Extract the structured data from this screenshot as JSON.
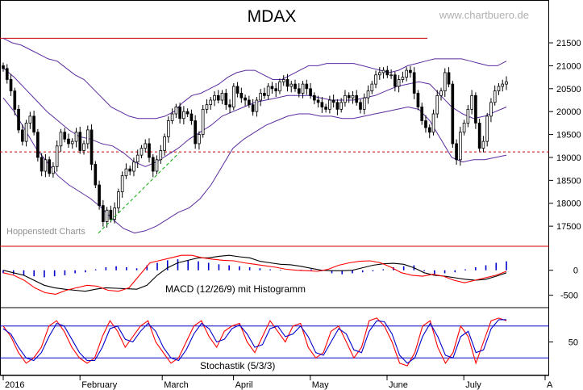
{
  "chart_data": [
    {
      "type": "candlestick",
      "title": "MDAX",
      "watermark": "www.chartbuero.de",
      "source_label": "Hoppenstedt Charts",
      "y_ticks": [
        "21500",
        "21000",
        "20500",
        "20000",
        "19500",
        "19000",
        "18500",
        "18000",
        "17500"
      ],
      "ylim": [
        17150,
        21800
      ],
      "x_labels": [
        "2016",
        "February",
        "March",
        "April",
        "May",
        "June",
        "July",
        "A"
      ],
      "horizontal_lines": [
        {
          "value": 21600,
          "style": "solid",
          "color": "#cc0000"
        },
        {
          "value": 19120,
          "style": "dashed",
          "color": "#cc0000"
        }
      ],
      "trendline": {
        "from": 17350,
        "to": 19100,
        "style": "dashed",
        "color": "#00aa00"
      },
      "closes": [
        20940,
        20700,
        20450,
        20050,
        19600,
        19350,
        19750,
        19900,
        19550,
        19000,
        18700,
        18950,
        18650,
        18800,
        19250,
        19550,
        19400,
        19300,
        19350,
        19550,
        19150,
        19300,
        19600,
        18850,
        18400,
        17950,
        17600,
        17850,
        17650,
        17900,
        18250,
        18600,
        18750,
        18700,
        18900,
        19050,
        19200,
        19300,
        19000,
        18700,
        18950,
        19150,
        19450,
        19800,
        19950,
        20100,
        19850,
        20000,
        19950,
        19800,
        19300,
        19500,
        20050,
        20150,
        20250,
        20350,
        20250,
        20400,
        20150,
        20100,
        20550,
        20400,
        20300,
        20250,
        20150,
        20000,
        20250,
        20400,
        20350,
        20550,
        20500,
        20450,
        20650,
        20700,
        20550,
        20600,
        20500,
        20400,
        20600,
        20500,
        20350,
        20250,
        20200,
        20100,
        20050,
        20250,
        20200,
        20050,
        20200,
        20350,
        20300,
        20350,
        20200,
        20050,
        20300,
        20450,
        20600,
        20800,
        20850,
        20900,
        20800,
        20800,
        20550,
        20700,
        20750,
        20900,
        20850,
        20400,
        20100,
        19800,
        19650,
        19550,
        19950,
        20350,
        20450,
        20850,
        20600,
        19300,
        18950,
        19550,
        19750,
        20050,
        20350,
        19750,
        19200,
        19350,
        19900,
        20200,
        20450,
        20550,
        20600,
        20650
      ],
      "series": [
        {
          "name": "Bollinger upper",
          "color": "#5a2ca0",
          "values": [
            21600,
            21500,
            21450,
            21350,
            21250,
            21150,
            21100,
            20950,
            20800,
            20700,
            20500,
            20300,
            20100,
            20000,
            19900,
            19850,
            19850,
            19850,
            19900,
            20000,
            20200,
            20350,
            20400,
            20500,
            20600,
            20750,
            20850,
            20900,
            20900,
            20800,
            20700,
            20700,
            20800,
            20900,
            21000,
            21000,
            21050,
            21050,
            21050,
            21050,
            21000,
            20950,
            20900,
            20850,
            20900,
            21000,
            21050,
            21100,
            21150,
            21150,
            21150,
            21150,
            21100,
            21050,
            21000,
            21000,
            21100
          ]
        },
        {
          "name": "Bollinger middle",
          "color": "#5a2ca0",
          "values": [
            20950,
            20750,
            20500,
            20250,
            20000,
            19800,
            19600,
            19450,
            19400,
            19300,
            19250,
            19100,
            18900,
            18800,
            18900,
            19050,
            19200,
            19400,
            19550,
            19700,
            19900,
            20000,
            20100,
            20200,
            20250,
            20300,
            20350,
            20350,
            20350,
            20300,
            20250,
            20250,
            20250,
            20300,
            20350,
            20450,
            20550,
            20600,
            20650,
            20600,
            20350,
            20100,
            19950,
            19850,
            19900,
            20000,
            20100
          ]
        },
        {
          "name": "Bollinger lower",
          "color": "#5a2ca0",
          "values": [
            20300,
            20000,
            19600,
            19200,
            18900,
            18600,
            18400,
            18250,
            18100,
            17900,
            17650,
            17450,
            17350,
            17400,
            17500,
            17650,
            17800,
            17900,
            18100,
            18400,
            18800,
            19200,
            19400,
            19550,
            19700,
            19800,
            19900,
            19950,
            19950,
            19900,
            19900,
            19850,
            19850,
            19900,
            19950,
            20000,
            20050,
            20100,
            20050,
            19800,
            19400,
            19000,
            18900,
            18950,
            18950,
            19000,
            19050
          ]
        }
      ]
    },
    {
      "type": "line",
      "title": "MACD (12/26/9) mit Histogramm",
      "y_ticks": [
        "0",
        "-500"
      ],
      "ylim": [
        -700,
        400
      ],
      "series": [
        {
          "name": "MACD",
          "color": "#000000",
          "values": [
            0,
            -50,
            -100,
            -200,
            -300,
            -350,
            -380,
            -400,
            -420,
            -380,
            -350,
            -360,
            -370,
            -380,
            -300,
            -100,
            50,
            150,
            200,
            250,
            250,
            280,
            300,
            270,
            250,
            180,
            150,
            120,
            110,
            80,
            40,
            0,
            -10,
            -10,
            0,
            50,
            100,
            130,
            140,
            120,
            50,
            -50,
            -100,
            -120,
            -150,
            -180,
            -200,
            -180,
            -120,
            -50
          ]
        },
        {
          "name": "Signal",
          "color": "#ff0000",
          "values": [
            -50,
            -100,
            -200,
            -350,
            -450,
            -480,
            -400,
            -350,
            -300,
            -320,
            -400,
            -420,
            -350,
            -100,
            150,
            200,
            250,
            300,
            300,
            250,
            220,
            200,
            190,
            150,
            120,
            90,
            60,
            20,
            0,
            -10,
            -20,
            20,
            100,
            150,
            180,
            190,
            150,
            60,
            -50,
            -100,
            -120,
            -80,
            -120,
            -200,
            -250,
            -200,
            -150,
            -100,
            -20
          ]
        }
      ],
      "histogram": [
        -60,
        -80,
        -100,
        -120,
        -140,
        -120,
        -100,
        -60,
        -40,
        20,
        60,
        80,
        60,
        40,
        100,
        150,
        200,
        220,
        200,
        180,
        150,
        120,
        100,
        80,
        60,
        40,
        20,
        10,
        0,
        10,
        20,
        -20,
        -60,
        -80,
        -60,
        -40,
        -20,
        20,
        60,
        80,
        100,
        -20,
        -80,
        -60,
        -40,
        20,
        60,
        100,
        150,
        180
      ]
    },
    {
      "type": "line",
      "title": "Stochastik (5/3/3)",
      "y_ticks": [
        "50"
      ],
      "ylim": [
        -10,
        110
      ],
      "bands": [
        80,
        20
      ],
      "series": [
        {
          "name": "%K",
          "color": "#ff0000",
          "values": [
            80,
            60,
            30,
            10,
            20,
            40,
            80,
            90,
            70,
            40,
            20,
            10,
            20,
            60,
            90,
            70,
            40,
            60,
            80,
            90,
            50,
            30,
            10,
            20,
            50,
            80,
            90,
            60,
            40,
            70,
            80,
            85,
            50,
            30,
            60,
            90,
            70,
            50,
            80,
            85,
            40,
            20,
            30,
            70,
            80,
            50,
            20,
            40,
            90,
            95,
            80,
            50,
            10,
            5,
            30,
            80,
            90,
            40,
            10,
            30,
            80,
            60,
            10,
            50,
            90,
            95,
            90
          ]
        },
        {
          "name": "%D",
          "color": "#0000cc",
          "values": [
            75,
            65,
            40,
            20,
            15,
            30,
            60,
            85,
            80,
            55,
            30,
            15,
            15,
            40,
            75,
            80,
            55,
            50,
            70,
            85,
            70,
            40,
            20,
            15,
            35,
            65,
            85,
            75,
            50,
            55,
            75,
            82,
            65,
            40,
            45,
            75,
            80,
            60,
            65,
            80,
            60,
            30,
            25,
            50,
            75,
            65,
            35,
            30,
            70,
            90,
            88,
            65,
            25,
            10,
            20,
            60,
            85,
            60,
            25,
            20,
            60,
            70,
            30,
            35,
            75,
            92,
            92
          ]
        }
      ]
    }
  ]
}
